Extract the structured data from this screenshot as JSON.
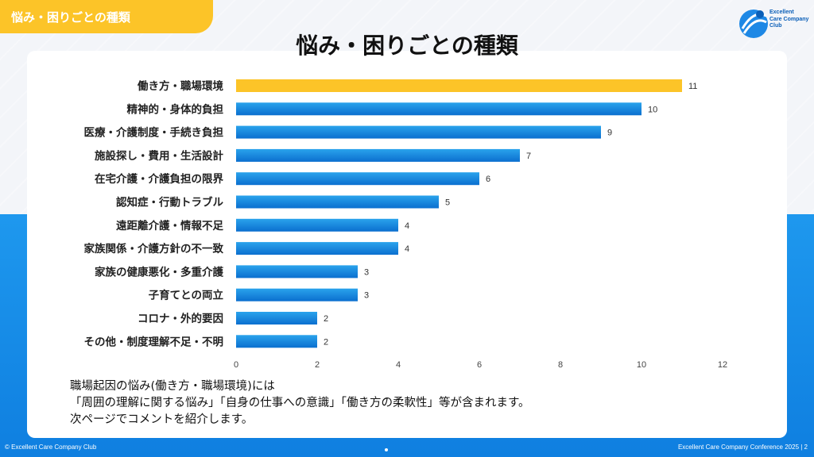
{
  "header": {
    "tag_label": "悩み・困りごとの種類"
  },
  "logo": {
    "lines": [
      "Excellent",
      "Care Company",
      "Club"
    ]
  },
  "colors": {
    "highlight": "#fcc428",
    "bar_top": "#2aa3ec",
    "bar_bottom": "#0b6fcf",
    "accent_blue": "#1e98ee"
  },
  "chart_data": {
    "type": "bar",
    "orientation": "horizontal",
    "title": "悩み・困りごとの種類",
    "categories": [
      "働き方・職場環境",
      "精神的・身体的負担",
      "医療・介護制度・手続き負担",
      "施設探し・費用・生活設計",
      "在宅介護・介護負担の限界",
      "認知症・行動トラブル",
      "遠距離介護・情報不足",
      "家族関係・介護方針の不一致",
      "家族の健康悪化・多重介護",
      "子育てとの両立",
      "コロナ・外的要因",
      "その他・制度理解不足・不明"
    ],
    "values": [
      11,
      10,
      9,
      7,
      6,
      5,
      4,
      4,
      3,
      3,
      2,
      2
    ],
    "highlight_index": 0,
    "xlim": [
      0,
      12
    ],
    "xticks": [
      0,
      2,
      4,
      6,
      8,
      10,
      12
    ],
    "xlabel": "",
    "ylabel": "",
    "grid": false
  },
  "caption": {
    "lines": [
      "職場起因の悩み(働き方・職場環境)には",
      "「周囲の理解に関する悩み」「自身の仕事への意識」「働き方の柔軟性」等が含まれます。",
      "次ページでコメントを紹介します。"
    ]
  },
  "footer": {
    "left": "© Excellent Care Company Club",
    "right": "Excellent Care Company Conference 2025 | 2"
  }
}
